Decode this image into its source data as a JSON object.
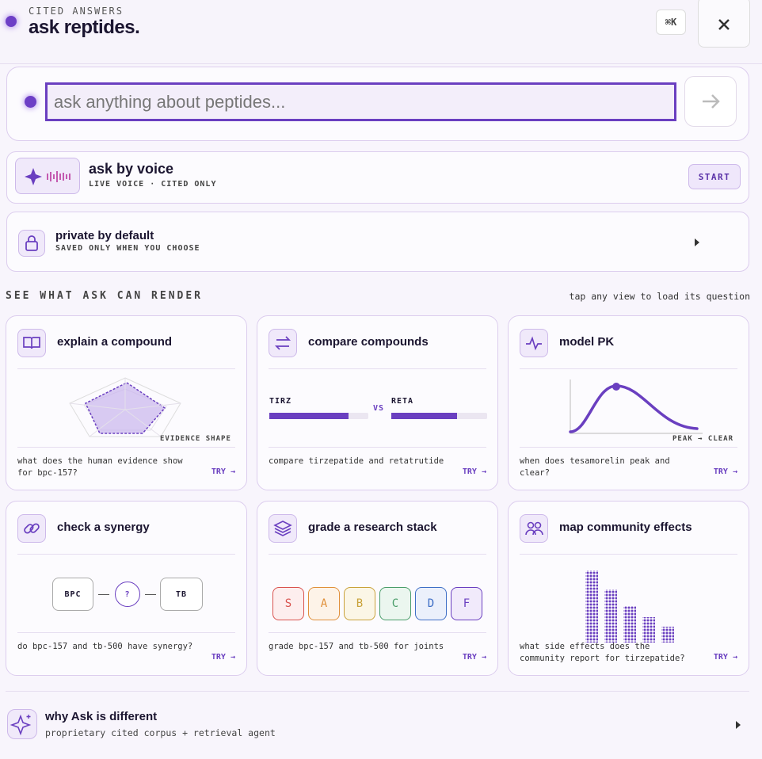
{
  "header": {
    "eyebrow": "CITED ANSWERS",
    "title": "ask reptides.",
    "shortcut": "⌘K"
  },
  "search": {
    "placeholder": "ask anything about peptides..."
  },
  "voice": {
    "title": "ask by voice",
    "subtitle": "LIVE VOICE · CITED ONLY",
    "button": "START"
  },
  "privacy": {
    "title": "private by default",
    "subtitle": "SAVED ONLY WHEN YOU CHOOSE"
  },
  "section": {
    "title": "SEE WHAT ASK CAN RENDER",
    "hint": "tap any view to load its question"
  },
  "cards": [
    {
      "title": "explain a compound",
      "visual_label": "EVIDENCE SHAPE",
      "question": "what does the human evidence show for bpc-157?",
      "cta": "TRY →"
    },
    {
      "title": "compare compounds",
      "left": "TIRZ",
      "versus": "VS",
      "right": "RETA",
      "question": "compare tirzepatide and retatrutide",
      "cta": "TRY →"
    },
    {
      "title": "model PK",
      "visual_label": "PEAK → CLEAR",
      "question": "when does tesamorelin peak and clear?",
      "cta": "TRY →"
    },
    {
      "title": "check a synergy",
      "left": "BPC",
      "middle": "?",
      "right": "TB",
      "question": "do bpc-157 and tb-500 have synergy?",
      "cta": "TRY →"
    },
    {
      "title": "grade a research stack",
      "grades": [
        "S",
        "A",
        "B",
        "C",
        "D",
        "F"
      ],
      "question": "grade bpc-157 and tb-500 for joints",
      "cta": "TRY →"
    },
    {
      "title": "map community effects",
      "question": "what side effects does the community report for tirzepatide?",
      "cta": "TRY →"
    }
  ],
  "footer": {
    "title": "why Ask is different",
    "subtitle": "proprietary cited corpus + retrieval agent"
  }
}
